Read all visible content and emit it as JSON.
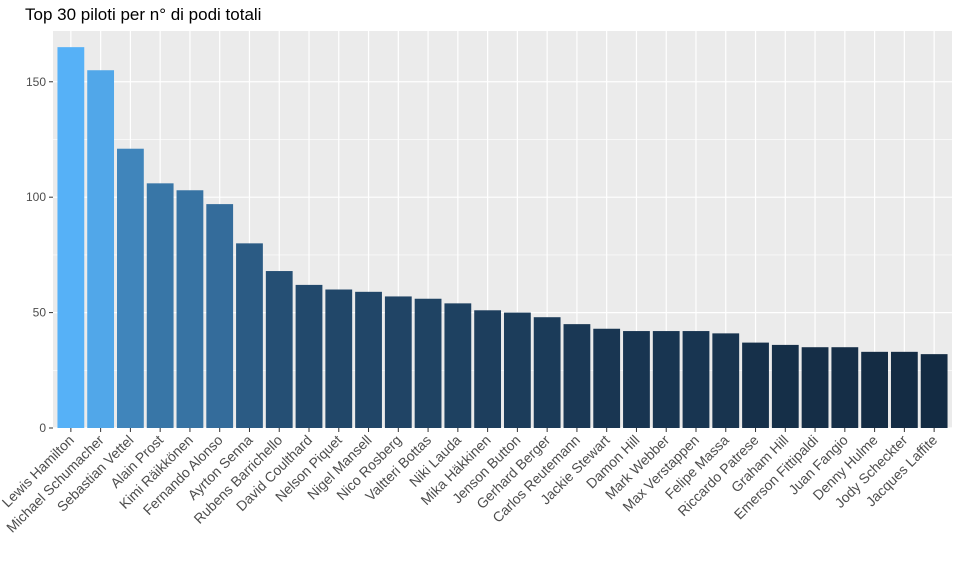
{
  "chart_data": {
    "type": "bar",
    "title": "Top 30 piloti per n° di podi totali",
    "xlabel": "",
    "ylabel": "",
    "ylim": [
      0,
      172
    ],
    "y_ticks": [
      0,
      50,
      100,
      150
    ],
    "grid": true,
    "legend": "none",
    "colors": {
      "panel": "#ebebeb",
      "grid": "#ffffff",
      "bar_high": "#56b1f7",
      "bar_low": "#132b43",
      "tick_text": "#4d4d4d"
    },
    "categories": [
      "Lewis Hamilton",
      "Michael Schumacher",
      "Sebastian Vettel",
      "Alain Prost",
      "Kimi Räikkönen",
      "Fernando Alonso",
      "Ayrton Senna",
      "Rubens Barrichello",
      "David Coulthard",
      "Nelson Piquet",
      "Nigel Mansell",
      "Nico Rosberg",
      "Valtteri Bottas",
      "Niki Lauda",
      "Mika Häkkinen",
      "Jenson Button",
      "Gerhard Berger",
      "Carlos Reutemann",
      "Jackie Stewart",
      "Damon Hill",
      "Mark Webber",
      "Max Verstappen",
      "Felipe Massa",
      "Riccardo Patrese",
      "Graham Hill",
      "Emerson Fittipaldi",
      "Juan Fangio",
      "Denny Hulme",
      "Jody Scheckter",
      "Jacques Laffite"
    ],
    "values": [
      165,
      155,
      121,
      106,
      103,
      97,
      80,
      68,
      62,
      60,
      59,
      57,
      56,
      54,
      51,
      50,
      48,
      45,
      43,
      42,
      42,
      42,
      41,
      37,
      36,
      35,
      35,
      33,
      33,
      32
    ]
  }
}
